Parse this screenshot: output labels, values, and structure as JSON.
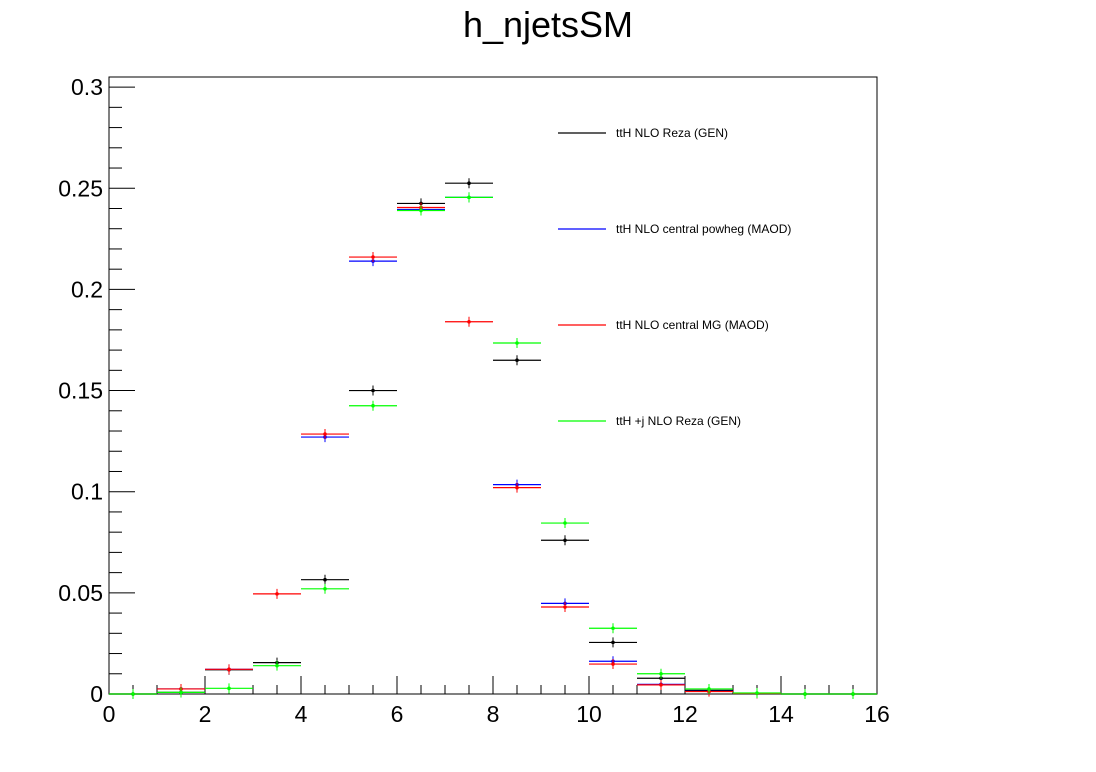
{
  "chart_data": {
    "type": "scatter",
    "title": "h_njetsSM",
    "xlabel": "",
    "ylabel": "",
    "xlim": [
      0,
      16
    ],
    "ylim": [
      0,
      0.305
    ],
    "x_ticks": [
      0,
      2,
      4,
      6,
      8,
      10,
      12,
      14,
      16
    ],
    "y_ticks": [
      0,
      0.05,
      0.1,
      0.15,
      0.2,
      0.25,
      0.3
    ],
    "x_tick_labels": [
      "0",
      "2",
      "4",
      "6",
      "8",
      "10",
      "12",
      "14",
      "16"
    ],
    "y_tick_labels": [
      "0",
      "0.05",
      "0.1",
      "0.15",
      "0.2",
      "0.25",
      "0.3"
    ],
    "bin_edges": [
      0,
      1,
      2,
      3,
      4,
      5,
      6,
      7,
      8,
      9,
      10,
      11,
      12,
      13,
      14,
      15,
      16
    ],
    "legend_position": "top-right",
    "grid": false,
    "series": [
      {
        "name": "ttH NLO Reza (GEN)",
        "color": "#000000",
        "x": [
          0.5,
          1.5,
          2.5,
          3.5,
          4.5,
          5.5,
          6.5,
          7.5,
          8.5,
          9.5,
          10.5,
          11.5,
          12.5,
          13.5,
          14.5,
          15.5
        ],
        "values": [
          0,
          0.0008,
          0.012,
          0.0155,
          0.0565,
          0.15,
          0.2425,
          0.2525,
          0.165,
          0.076,
          0.0255,
          0.0078,
          0.0018,
          0.0003,
          0,
          0
        ]
      },
      {
        "name": "ttH NLO central powheg (MAOD)",
        "color": "#0000ff",
        "x": [
          0.5,
          1.5,
          2.5,
          3.5,
          4.5,
          5.5,
          6.5,
          7.5,
          8.5,
          9.5,
          10.5,
          11.5,
          12.5,
          13.5,
          14.5,
          15.5
        ],
        "values": [
          0,
          0.0025,
          0.0122,
          null,
          0.127,
          0.214,
          0.2395,
          0.2455,
          0.1035,
          0.0448,
          0.0162,
          0.0048,
          0.0013,
          0.0003,
          0,
          0
        ]
      },
      {
        "name": "ttH NLO central MG (MAOD)",
        "color": "#ff0000",
        "x": [
          0.5,
          1.5,
          2.5,
          3.5,
          4.5,
          5.5,
          6.5,
          7.5,
          8.5,
          9.5,
          10.5,
          11.5,
          12.5,
          13.5,
          14.5,
          15.5
        ],
        "values": [
          0,
          0.0025,
          0.0122,
          0.0495,
          0.1285,
          0.216,
          0.2405,
          0.184,
          0.102,
          0.043,
          0.0148,
          0.0045,
          0.0012,
          0.0003,
          0,
          0
        ]
      },
      {
        "name": "ttH +j NLO Reza (GEN)",
        "color": "#00ff00",
        "x": [
          0.5,
          1.5,
          2.5,
          3.5,
          4.5,
          5.5,
          6.5,
          7.5,
          8.5,
          9.5,
          10.5,
          11.5,
          12.5,
          13.5,
          14.5,
          15.5
        ],
        "values": [
          0,
          0.0008,
          0.0028,
          0.014,
          0.052,
          0.1425,
          0.239,
          0.2455,
          0.1735,
          0.0845,
          0.0325,
          0.01,
          0.0025,
          0.0005,
          0,
          0
        ]
      }
    ]
  }
}
